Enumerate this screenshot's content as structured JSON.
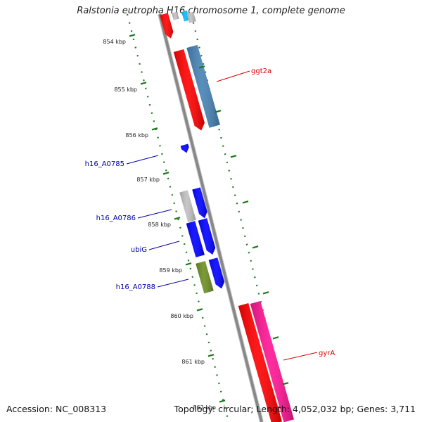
{
  "title": "Ralstonia eutropha H16 chromosome 1, complete genome",
  "footer": {
    "accession": "Accession: NC_008313",
    "summary": "Topology: circular; Length: 4,052,032 bp; Genes: 3,711"
  },
  "ticks": [
    "854 kbp",
    "855 kbp",
    "856 kbp",
    "857 kbp",
    "858 kbp",
    "859 kbp",
    "860 kbp",
    "861 kbp",
    "862 kbp"
  ],
  "gene_labels": [
    {
      "text": "ggt2a",
      "color": "#dd0000"
    },
    {
      "text": "h16_A0785",
      "color": "#0000aa"
    },
    {
      "text": "h16_A0786",
      "color": "#0000aa"
    },
    {
      "text": "ubiG",
      "color": "#0000aa"
    },
    {
      "text": "h16_A0788",
      "color": "#0000aa"
    },
    {
      "text": "gyrA",
      "color": "#dd0000"
    }
  ],
  "colors": {
    "red": "#ff0000",
    "steelblue": "#4682b4",
    "blue": "#0000ff",
    "gray": "#c0c0c0",
    "olive": "#6b8e23",
    "pink": "#ff1493",
    "cyan": "#00bfff",
    "backbone": "#888888",
    "tickGreen": "#1a7a1a"
  }
}
